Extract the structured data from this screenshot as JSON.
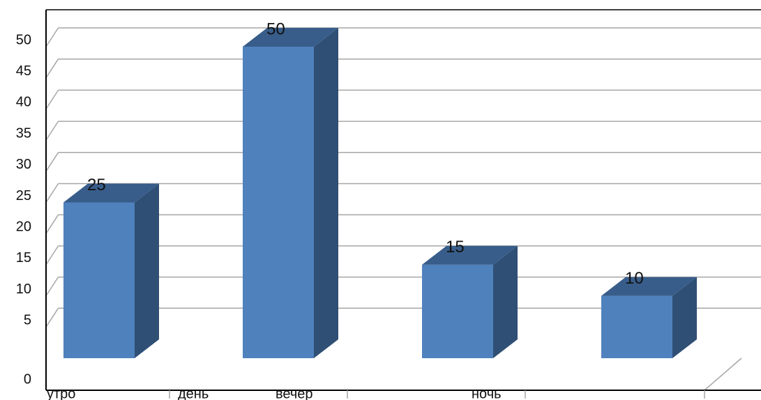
{
  "chart_data": {
    "type": "bar",
    "style": "3d-column",
    "categories": [
      "утро",
      "день",
      "вечер",
      "ночь"
    ],
    "values": [
      25,
      50,
      15,
      10
    ],
    "data_labels": [
      "25",
      "50",
      "15",
      "10"
    ],
    "yticks": [
      "0",
      "5",
      "10",
      "15",
      "20",
      "25",
      "30",
      "35",
      "40",
      "45",
      "50"
    ],
    "ylim": [
      0,
      50
    ],
    "grid": true,
    "colors": {
      "bar_front": "#4f81bd",
      "bar_side": "#2f4f75",
      "bar_top": "#385d8a",
      "gridline": "#a6a6a6",
      "axis": "#000000"
    }
  }
}
